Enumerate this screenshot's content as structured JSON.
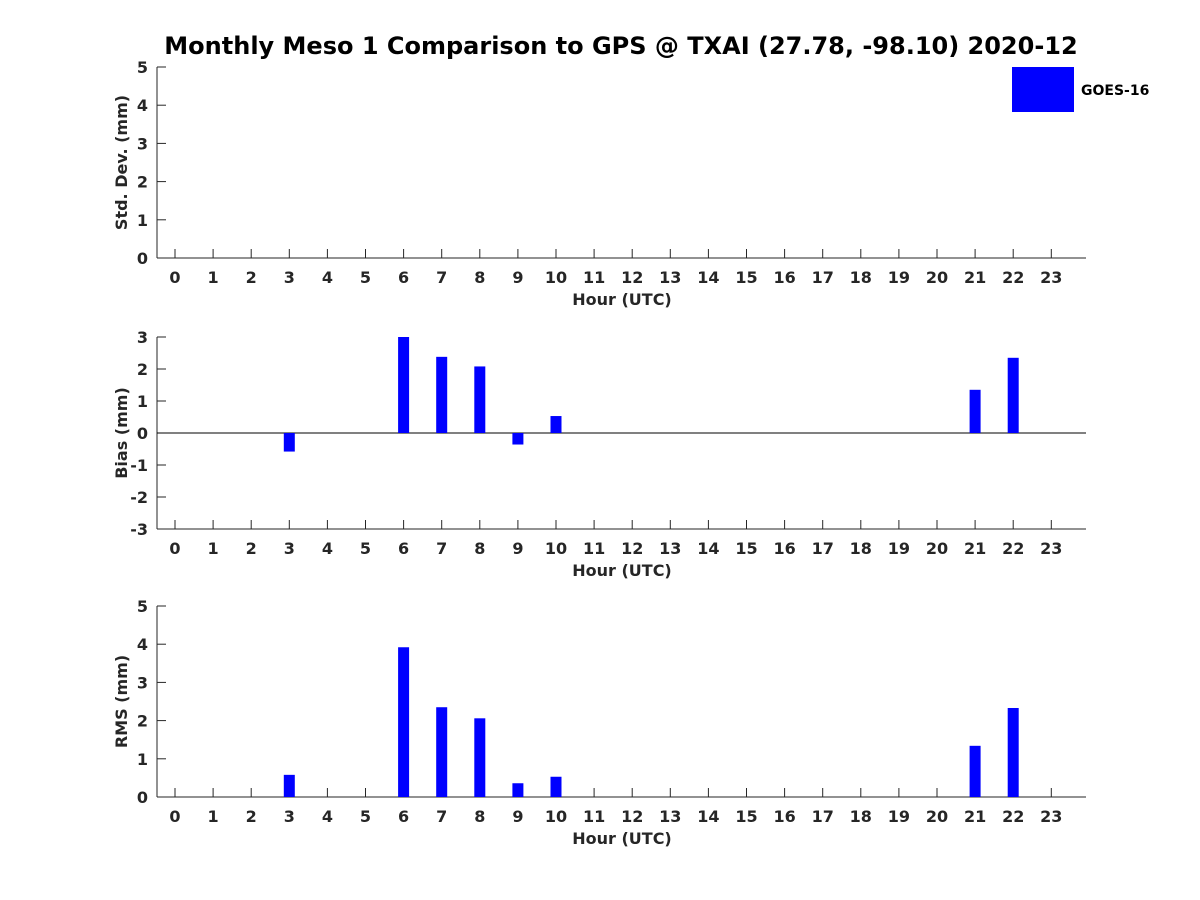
{
  "title": "Monthly Meso 1 Comparison to GPS @ TXAI (27.78, -98.10) 2020-12",
  "legend": {
    "label": "GOES-16",
    "color": "#0000ff",
    "placement": "top-right"
  },
  "chart_data": [
    {
      "type": "bar",
      "xlabel": "Hour (UTC)",
      "ylabel": "Std. Dev. (mm)",
      "ylim": [
        0,
        5
      ],
      "yticks": [
        0,
        1,
        2,
        3,
        4,
        5
      ],
      "categories": [
        0,
        1,
        2,
        3,
        4,
        5,
        6,
        7,
        8,
        9,
        10,
        11,
        12,
        13,
        14,
        15,
        16,
        17,
        18,
        19,
        20,
        21,
        22,
        23
      ],
      "series": [
        {
          "name": "GOES-16",
          "color": "#0000ff",
          "values": [
            null,
            null,
            null,
            0,
            null,
            null,
            0,
            0,
            0,
            0,
            0,
            null,
            null,
            null,
            null,
            null,
            null,
            null,
            null,
            null,
            null,
            0,
            0,
            null
          ]
        }
      ]
    },
    {
      "type": "bar",
      "xlabel": "Hour (UTC)",
      "ylabel": "Bias (mm)",
      "ylim": [
        -3,
        3
      ],
      "yticks": [
        -3,
        -2,
        -1,
        0,
        1,
        2,
        3
      ],
      "zero_line": true,
      "categories": [
        0,
        1,
        2,
        3,
        4,
        5,
        6,
        7,
        8,
        9,
        10,
        11,
        12,
        13,
        14,
        15,
        16,
        17,
        18,
        19,
        20,
        21,
        22,
        23
      ],
      "series": [
        {
          "name": "GOES-16",
          "color": "#0000ff",
          "values": [
            null,
            null,
            null,
            -0.58,
            null,
            null,
            3.0,
            2.38,
            2.08,
            -0.36,
            0.53,
            null,
            null,
            null,
            null,
            null,
            null,
            null,
            null,
            null,
            null,
            1.35,
            2.35,
            null
          ]
        }
      ]
    },
    {
      "type": "bar",
      "xlabel": "Hour (UTC)",
      "ylabel": "RMS (mm)",
      "ylim": [
        0,
        5
      ],
      "yticks": [
        0,
        1,
        2,
        3,
        4,
        5
      ],
      "categories": [
        0,
        1,
        2,
        3,
        4,
        5,
        6,
        7,
        8,
        9,
        10,
        11,
        12,
        13,
        14,
        15,
        16,
        17,
        18,
        19,
        20,
        21,
        22,
        23
      ],
      "series": [
        {
          "name": "GOES-16",
          "color": "#0000ff",
          "values": [
            null,
            null,
            null,
            0.58,
            null,
            null,
            3.92,
            2.35,
            2.06,
            0.36,
            0.53,
            null,
            null,
            null,
            null,
            null,
            null,
            null,
            null,
            null,
            null,
            1.34,
            2.33,
            null
          ]
        }
      ]
    }
  ]
}
